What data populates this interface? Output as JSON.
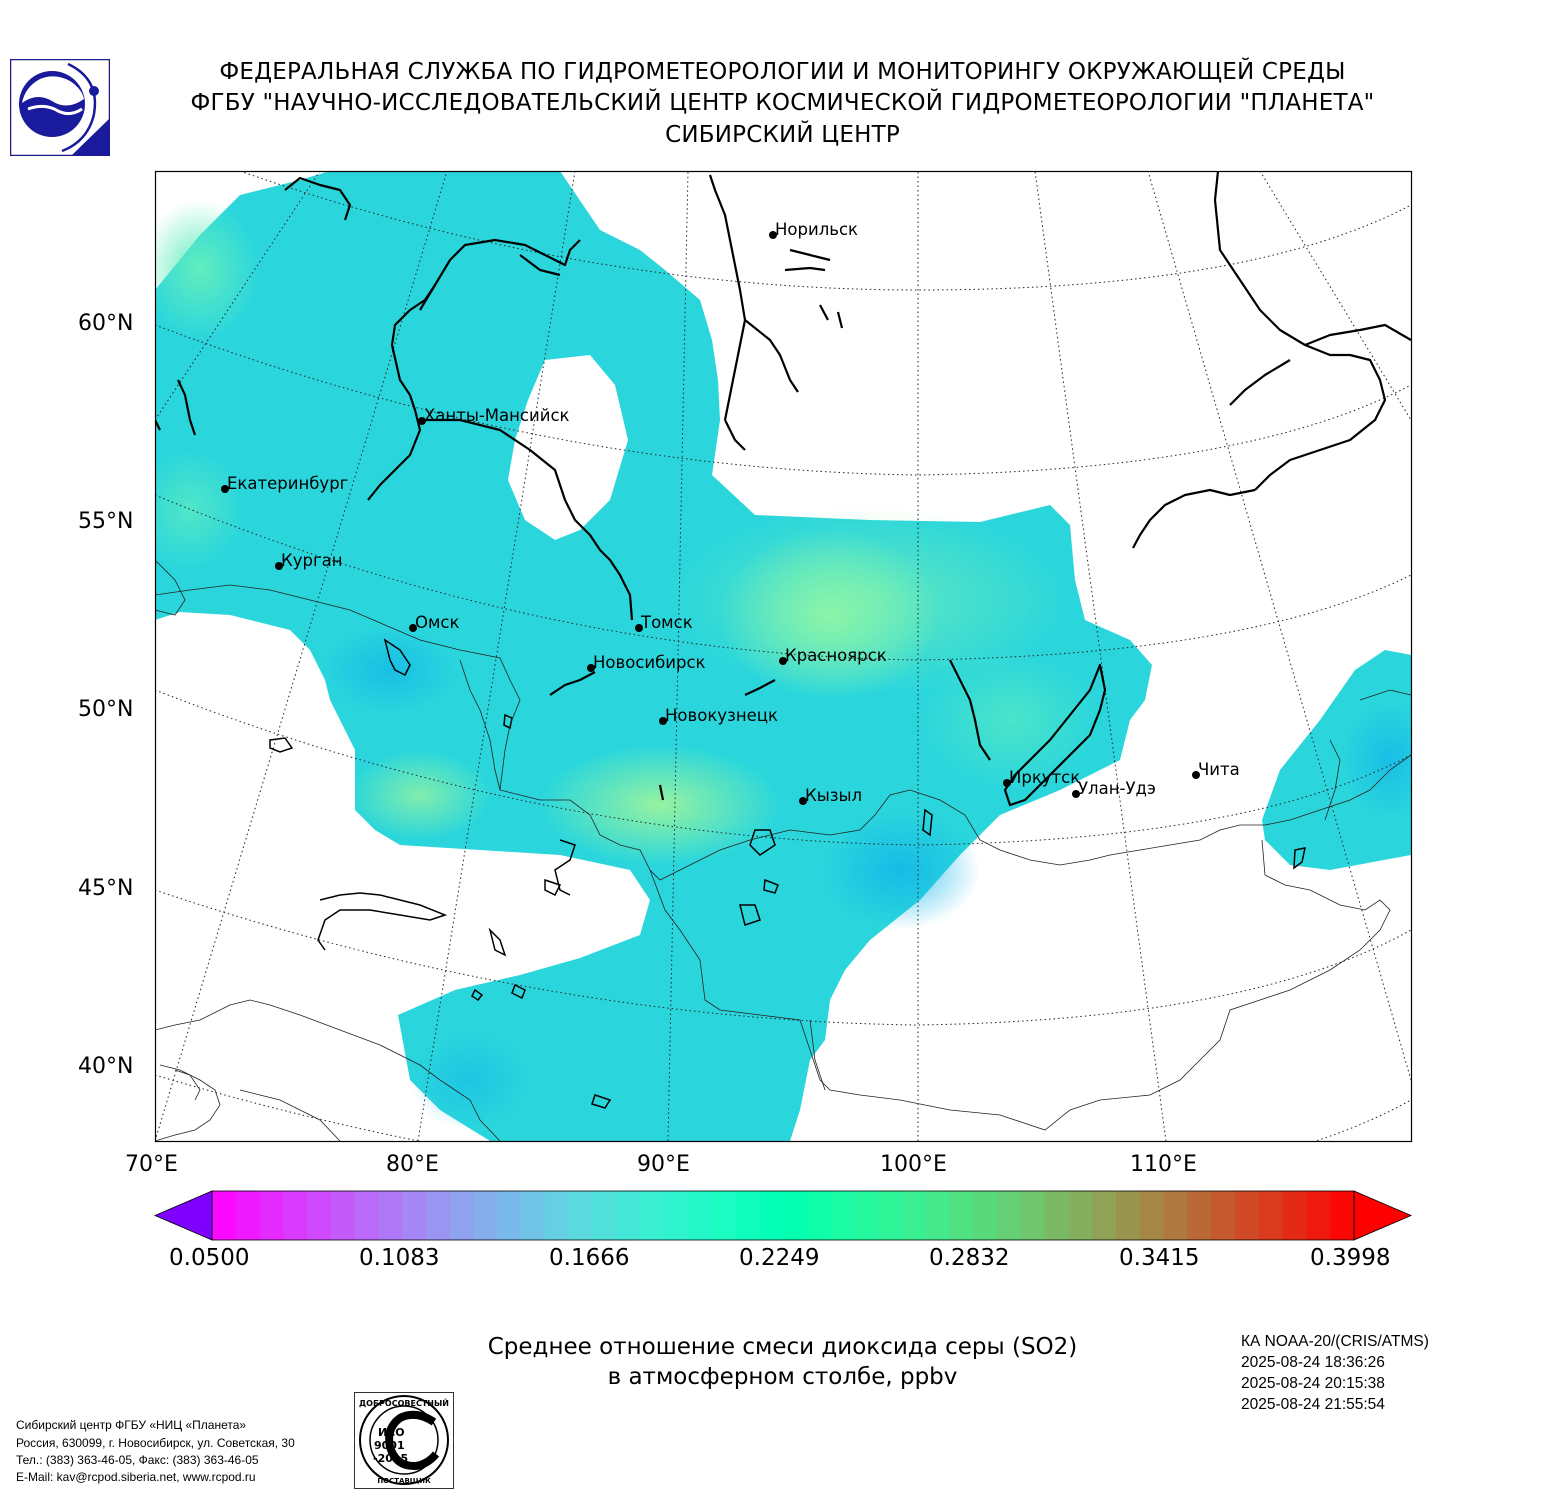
{
  "header": {
    "line1": "ФЕДЕРАЛЬНАЯ СЛУЖБА ПО ГИДРОМЕТЕОРОЛОГИИ И МОНИТОРИНГУ ОКРУЖАЮЩЕЙ СРЕДЫ",
    "line2": "ФГБУ \"НАУЧНО-ИССЛЕДОВАТЕЛЬСКИЙ ЦЕНТР КОСМИЧЕСКОЙ ГИДРОМЕТЕОРОЛОГИИ \"ПЛАНЕТА\"",
    "line3": "СИБИРСКИЙ ЦЕНТР"
  },
  "logo_icon": "roshydromet-planeta-logo",
  "map": {
    "lat_labels": [
      "60°N",
      "55°N",
      "50°N",
      "45°N",
      "40°N"
    ],
    "lon_labels": [
      "70°E",
      "80°E",
      "90°E",
      "100°E",
      "110°E"
    ],
    "cities": [
      "Норильск",
      "Ханты-Мансийск",
      "Екатеринбург",
      "Курган",
      "Омск",
      "Томск",
      "Новосибирск",
      "Красноярск",
      "Новокузнецк",
      "Иркутск",
      "Улан-Удэ",
      "Чита",
      "Кызыл"
    ]
  },
  "colorbar": {
    "ticks": [
      "0.0500",
      "0.1083",
      "0.1666",
      "0.2249",
      "0.2832",
      "0.3415",
      "0.3998"
    ],
    "colormap": "rainbow",
    "min_color": "#8000ff",
    "max_color": "#ff0000"
  },
  "title": {
    "line1": "Среднее отношение смеси диоксида серы (SO2)",
    "line2": "в атмосферном столбе, ppbv"
  },
  "satellite": {
    "name": "КА NOAA-20/(CRIS/ATMS)",
    "times": [
      "2025-08-24 18:36:26",
      "2025-08-24 20:15:38",
      "2025-08-24 21:55:54"
    ]
  },
  "footer": {
    "line1": "Сибирский центр ФГБУ «НИЦ «Планета»",
    "line2": "Россия, 630099, г. Новосибирск, ул. Советская, 30",
    "line3": "Тел.: (383) 363-46-05, Факс: (383) 363-46-05",
    "line4": "E-Mail: kav@rcpod.siberia.net, www.rcpod.ru"
  },
  "iso_badge": {
    "top_text": "ДОБРОСОВЕСТНЫЙ",
    "iso": "ИСО",
    "number": "9001",
    "year": "-2015",
    "bottom_text": "ПОСТАВЩИК"
  }
}
